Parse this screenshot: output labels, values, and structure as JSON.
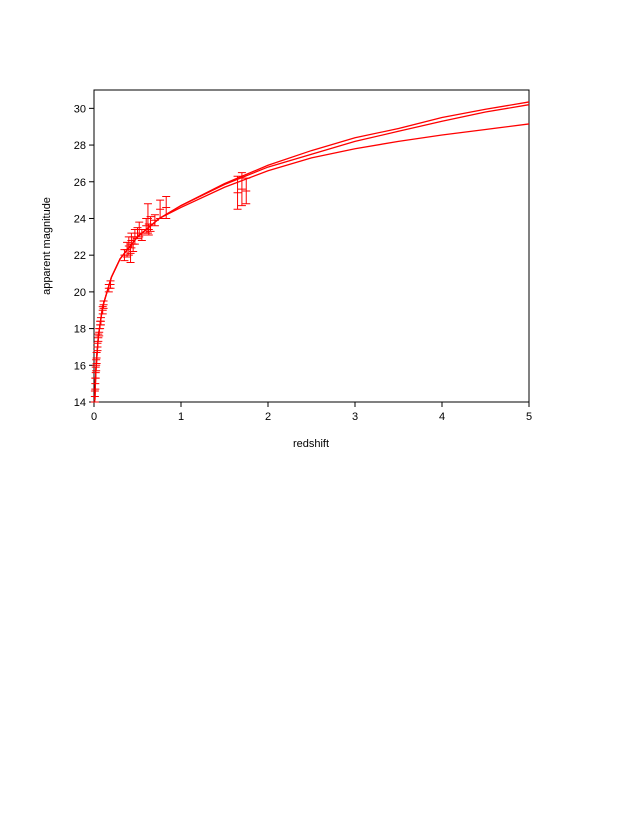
{
  "chart_data": {
    "type": "line",
    "x_label": "redshift",
    "y_label": "apparent magnitude",
    "xlim": [
      0,
      5
    ],
    "xticks": [
      0,
      1,
      2,
      3,
      4,
      5
    ],
    "ylim": [
      14,
      31
    ],
    "yticks": [
      14,
      16,
      18,
      20,
      22,
      24,
      26,
      28,
      30
    ],
    "series": [
      {
        "color": "#ff0000",
        "x": [
          0.01,
          0.02,
          0.05,
          0.1,
          0.2,
          0.3,
          0.5,
          0.75,
          1,
          1.5,
          2,
          2.5,
          3,
          3.5,
          4,
          4.5,
          5
        ],
        "values": [
          14.1,
          15.6,
          17.6,
          19.2,
          20.8,
          21.8,
          23.0,
          24.0,
          24.7,
          25.9,
          26.9,
          27.7,
          28.4,
          28.9,
          29.5,
          29.95,
          30.35
        ]
      },
      {
        "color": "#ff0000",
        "x": [
          0.01,
          0.02,
          0.05,
          0.1,
          0.2,
          0.3,
          0.5,
          0.75,
          1,
          1.5,
          2,
          2.5,
          3,
          3.5,
          4,
          4.5,
          5
        ],
        "values": [
          14.1,
          15.6,
          17.6,
          19.2,
          20.8,
          21.8,
          23.0,
          24.0,
          24.7,
          25.85,
          26.8,
          27.5,
          28.2,
          28.75,
          29.3,
          29.8,
          30.2
        ]
      },
      {
        "color": "#ff0000",
        "x": [
          0.01,
          0.02,
          0.05,
          0.1,
          0.2,
          0.3,
          0.5,
          0.75,
          1,
          1.5,
          2,
          2.5,
          3,
          3.5,
          4,
          4.5,
          5
        ],
        "values": [
          14.1,
          15.6,
          17.6,
          19.2,
          20.8,
          21.8,
          23.0,
          24.0,
          24.6,
          25.7,
          26.6,
          27.3,
          27.8,
          28.2,
          28.55,
          28.85,
          29.15
        ]
      },
      {
        "type": "errorbar",
        "color": "#ff0000",
        "x": [
          0.01,
          0.015,
          0.02,
          0.025,
          0.03,
          0.04,
          0.05,
          0.06,
          0.07,
          0.08,
          0.1,
          0.11,
          0.17,
          0.19,
          0.35,
          0.38,
          0.4,
          0.42,
          0.43,
          0.45,
          0.47,
          0.5,
          0.52,
          0.55,
          0.6,
          0.62,
          0.63,
          0.65,
          0.7,
          0.76,
          0.83,
          1.65,
          1.7,
          1.75
        ],
        "values": [
          14.3,
          15.0,
          15.6,
          16.0,
          16.4,
          17.0,
          17.5,
          17.8,
          18.2,
          18.4,
          19.0,
          19.3,
          20.2,
          20.4,
          22.0,
          22.3,
          22.5,
          22.1,
          22.8,
          22.6,
          23.0,
          23.2,
          23.4,
          23.1,
          23.6,
          24.0,
          23.4,
          23.7,
          23.9,
          24.5,
          24.6,
          25.4,
          25.6,
          25.5
        ],
        "errors": [
          0.3,
          0.3,
          0.3,
          0.3,
          0.3,
          0.2,
          0.2,
          0.2,
          0.2,
          0.2,
          0.2,
          0.2,
          0.2,
          0.2,
          0.3,
          0.4,
          0.5,
          0.5,
          0.4,
          0.4,
          0.4,
          0.3,
          0.4,
          0.3,
          0.4,
          0.8,
          0.3,
          0.4,
          0.3,
          0.5,
          0.6,
          0.9,
          0.9,
          0.7
        ]
      }
    ]
  }
}
